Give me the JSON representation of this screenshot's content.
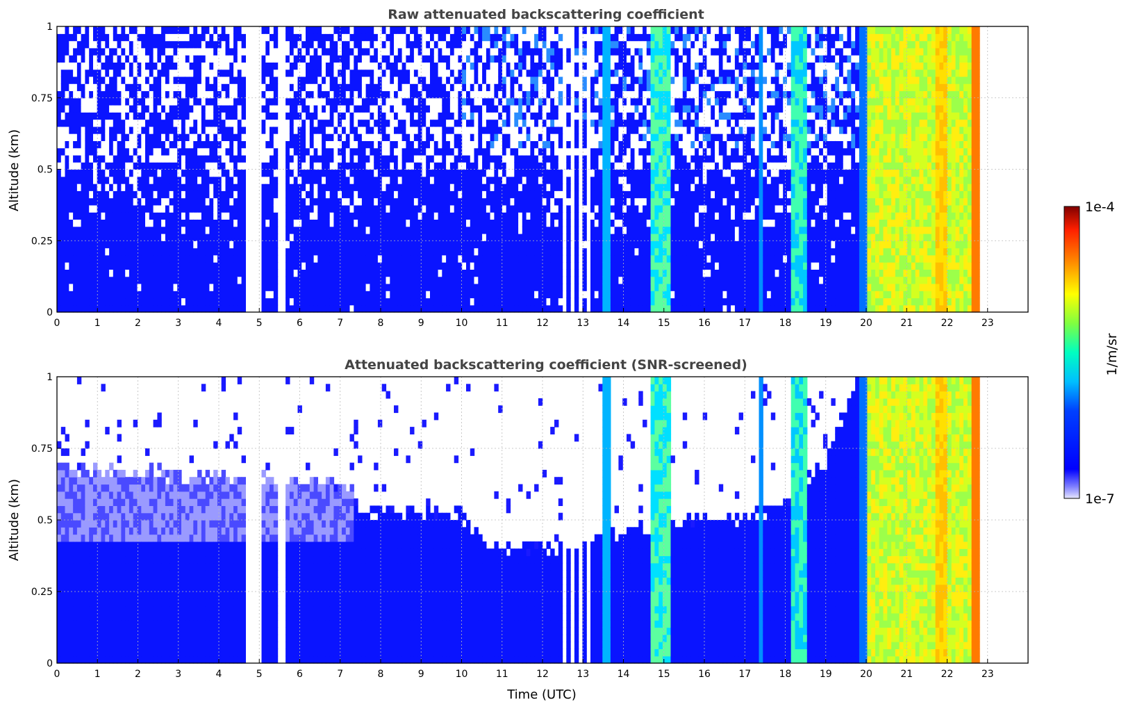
{
  "chart_data": [
    {
      "type": "heatmap",
      "title": "Raw attenuated backscattering coefficient",
      "xlabel": "",
      "ylabel": "Altitude (km)",
      "xlim": [
        0,
        24
      ],
      "ylim": [
        0,
        1
      ],
      "x_ticks": [
        "0",
        "1",
        "2",
        "3",
        "4",
        "5",
        "6",
        "7",
        "8",
        "9",
        "10",
        "11",
        "12",
        "13",
        "14",
        "15",
        "16",
        "17",
        "18",
        "19",
        "20",
        "21",
        "22",
        "23"
      ],
      "y_ticks": [
        "0",
        "0.25",
        "0.5",
        "0.75",
        "1"
      ],
      "grid": true,
      "data_end_time": 22.8,
      "regimes": [
        {
          "start": 0.0,
          "end": 13.3,
          "description": "clear air, mostly 1e-6 level (blue) with noise aloft"
        },
        {
          "start": 13.4,
          "end": 13.6,
          "value_level": "2e-6"
        },
        {
          "start": 14.6,
          "end": 15.1,
          "value_level": "1e-5"
        },
        {
          "start": 17.3,
          "end": 17.4,
          "value_level": "3e-6"
        },
        {
          "start": 18.1,
          "end": 18.4,
          "value_level": "8e-6"
        },
        {
          "start": 19.9,
          "end": 22.8,
          "value_level": "2e-5 to 5e-5"
        }
      ],
      "data_gaps": [
        4.7,
        4.9,
        5.5,
        12.5,
        12.7,
        12.9,
        13.1
      ]
    },
    {
      "type": "heatmap",
      "title": "Attenuated backscattering coefficient (SNR-screened)",
      "xlabel": "Time (UTC)",
      "ylabel": "Altitude (km)",
      "xlim": [
        0,
        24
      ],
      "ylim": [
        0,
        1
      ],
      "x_ticks": [
        "0",
        "1",
        "2",
        "3",
        "4",
        "5",
        "6",
        "7",
        "8",
        "9",
        "10",
        "11",
        "12",
        "13",
        "14",
        "15",
        "16",
        "17",
        "18",
        "19",
        "20",
        "21",
        "22",
        "23"
      ],
      "y_ticks": [
        "0",
        "0.25",
        "0.5",
        "0.75",
        "1"
      ],
      "grid": true,
      "data_end_time": 22.8,
      "screen_top_km": [
        {
          "t": 0,
          "h": 0.67
        },
        {
          "t": 7,
          "h": 0.62
        },
        {
          "t": 7.5,
          "h": 0.52
        },
        {
          "t": 10,
          "h": 0.5
        },
        {
          "t": 10.5,
          "h": 0.4
        },
        {
          "t": 12,
          "h": 0.39
        },
        {
          "t": 13,
          "h": 0.4
        },
        {
          "t": 14,
          "h": 0.45
        },
        {
          "t": 16,
          "h": 0.5
        },
        {
          "t": 17,
          "h": 0.5
        },
        {
          "t": 18,
          "h": 0.55
        },
        {
          "t": 19,
          "h": 0.7
        },
        {
          "t": 19.8,
          "h": 1.0
        }
      ]
    }
  ],
  "colorbar": {
    "label": "1/m/sr",
    "max_label": "1e-4",
    "min_label": "1e-7",
    "scale": "log"
  }
}
